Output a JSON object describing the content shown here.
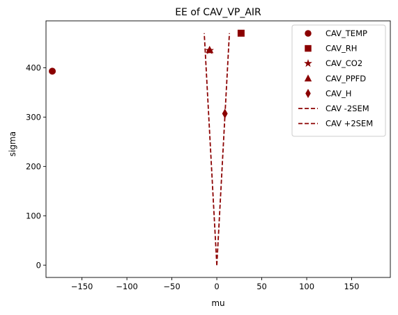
{
  "chart_data": {
    "type": "scatter",
    "title": "EE of CAV_VP_AIR",
    "xlabel": "mu",
    "ylabel": "sigma",
    "xlim": [
      -190,
      193
    ],
    "ylim": [
      -25,
      495
    ],
    "xticks": [
      -150,
      -100,
      -50,
      0,
      50,
      100,
      150
    ],
    "yticks": [
      0,
      100,
      200,
      300,
      400
    ],
    "grid": false,
    "legend_position": "top-right",
    "color": "#8b0000",
    "points": [
      {
        "name": "CAV_TEMP",
        "marker": "circle",
        "x": -183,
        "y": 393
      },
      {
        "name": "CAV_RH",
        "marker": "square",
        "x": 27,
        "y": 470
      },
      {
        "name": "CAV_CO2",
        "marker": "star",
        "x": -8,
        "y": 435
      },
      {
        "name": "CAV_PPFD",
        "marker": "triangle",
        "x": -8,
        "y": 436
      },
      {
        "name": "CAV_H",
        "marker": "diamond",
        "x": 9,
        "y": 307
      }
    ],
    "lines": [
      {
        "name": "CAV -2SEM",
        "style": "dashed",
        "x": [
          0,
          -14
        ],
        "y": [
          0,
          470
        ]
      },
      {
        "name": "CAV +2SEM",
        "style": "dashed",
        "x": [
          0,
          14
        ],
        "y": [
          0,
          470
        ]
      }
    ]
  }
}
